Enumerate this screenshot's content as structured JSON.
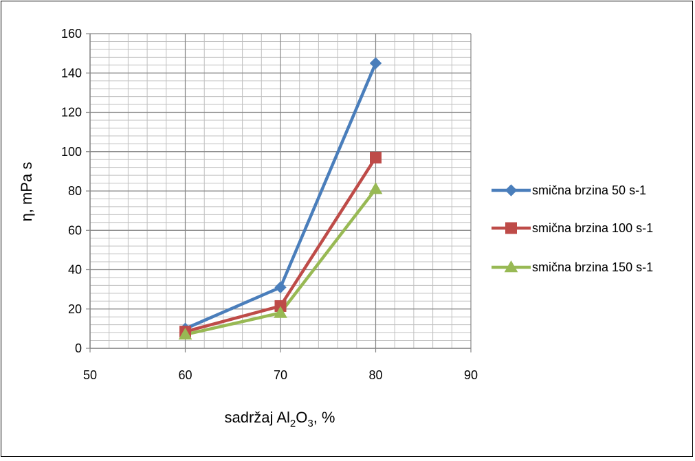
{
  "chart_data": {
    "type": "line",
    "title": "",
    "xlabel": "sadržaj Al2O3, %",
    "xlabel_parts": {
      "main": "sadržaj Al",
      "sub1": "2",
      "mid": "O",
      "sub2": "3",
      "tail": ", %"
    },
    "ylabel": "η, mPa s",
    "xlim": [
      50,
      90
    ],
    "ylim": [
      0,
      160
    ],
    "x_ticks": [
      "50",
      "60",
      "70",
      "80",
      "90"
    ],
    "y_ticks": [
      "0",
      "20",
      "40",
      "60",
      "80",
      "100",
      "120",
      "140",
      "160"
    ],
    "x_tick_values": [
      50,
      60,
      70,
      80,
      90
    ],
    "y_tick_values": [
      0,
      20,
      40,
      60,
      80,
      100,
      120,
      140,
      160
    ],
    "x_minor_step": 2,
    "y_minor_step": 4,
    "grid": true,
    "legend_position": "right",
    "x": [
      60,
      70,
      80
    ],
    "series": [
      {
        "name": "smična brzina 50 s-1",
        "values": [
          10,
          31,
          145
        ],
        "color": "#4A7EBB",
        "marker": "diamond"
      },
      {
        "name": "smična brzina 100 s-1",
        "values": [
          8.5,
          21.5,
          97
        ],
        "color": "#BE4B48",
        "marker": "square"
      },
      {
        "name": "smična brzina 150 s-1",
        "values": [
          7,
          18,
          81
        ],
        "color": "#98B954",
        "marker": "triangle"
      }
    ]
  }
}
